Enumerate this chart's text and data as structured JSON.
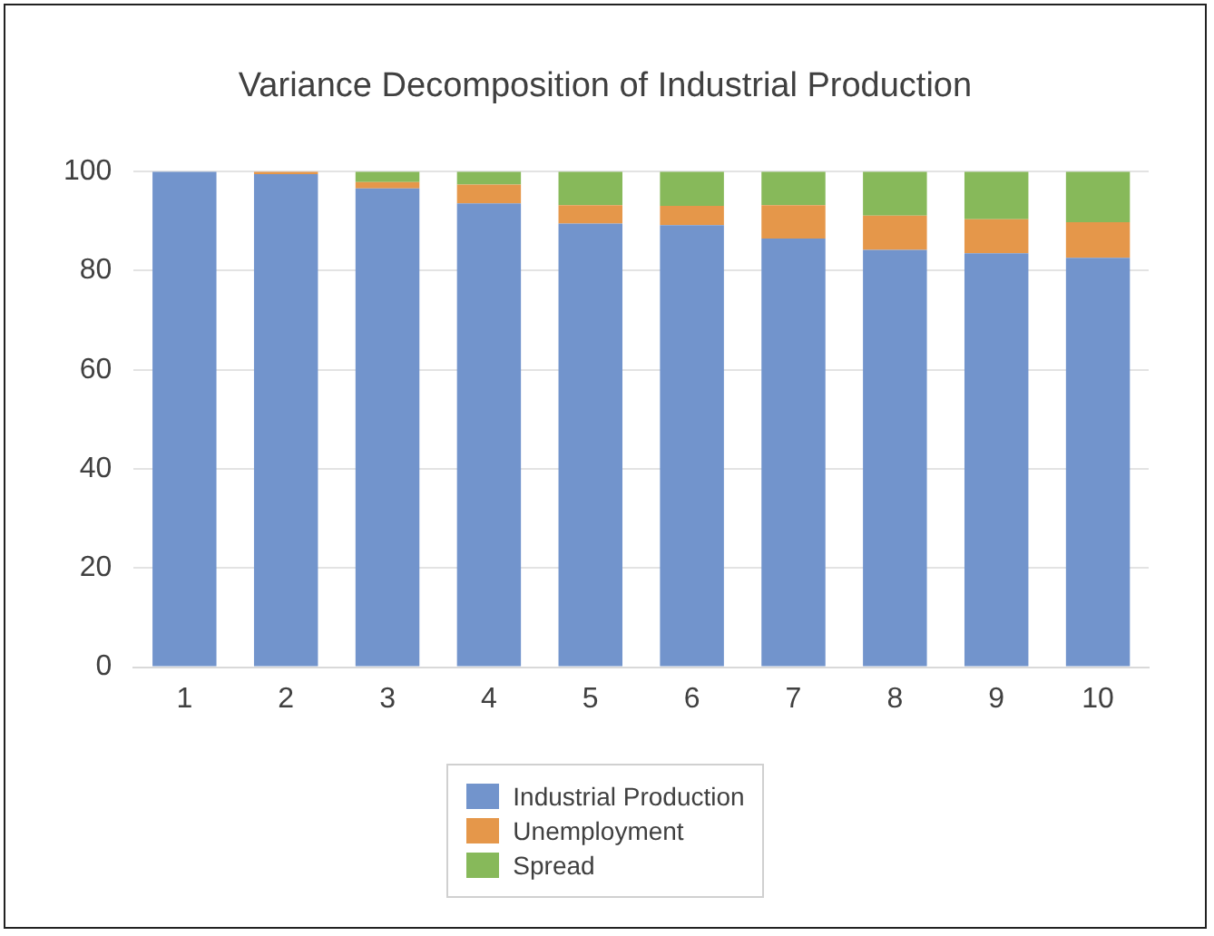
{
  "chart_data": {
    "type": "bar",
    "title": "Variance Decomposition of Industrial Production",
    "categories": [
      "1",
      "2",
      "3",
      "4",
      "5",
      "6",
      "7",
      "8",
      "9",
      "10"
    ],
    "stacked": true,
    "series": [
      {
        "name": "Industrial Production",
        "color": "#7294cc",
        "values": [
          100,
          99.5,
          96.6,
          93.6,
          89.5,
          89.2,
          86.5,
          84.2,
          83.5,
          82.6
        ]
      },
      {
        "name": "Unemployment",
        "color": "#e5974a",
        "values": [
          0,
          0.5,
          1.3,
          3.8,
          3.7,
          3.9,
          6.7,
          6.9,
          6.9,
          7.2
        ]
      },
      {
        "name": "Spread",
        "color": "#87b95a",
        "values": [
          0,
          0,
          2.1,
          2.6,
          6.8,
          6.9,
          6.8,
          8.9,
          9.6,
          10.2
        ]
      }
    ],
    "ylim": [
      0,
      100
    ],
    "yticks": [
      0,
      20,
      40,
      60,
      80,
      100
    ],
    "grid": "y",
    "legend": "bottom"
  }
}
